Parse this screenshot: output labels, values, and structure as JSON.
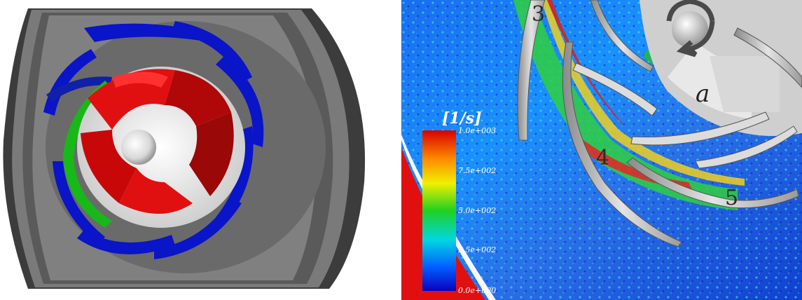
{
  "left_panel": {
    "colors": {
      "casing": "#6e6e6e",
      "casing_dark": "#3a3a3a",
      "diffuser_vanes": "#0a14c8",
      "impeller_blades": "#e01010",
      "highlight_vane": "#18b818",
      "hub": "#f2f2f2"
    }
  },
  "right_panel": {
    "blade_labels": [
      "3",
      "4",
      "5"
    ],
    "impeller_label": "a",
    "colorbar": {
      "unit": "[1/s]",
      "ticks": [
        "1.0e+003",
        "7.5e+002",
        "5.0e+002",
        "2.5e+002",
        "0.0e+000"
      ],
      "colors": [
        "#d80000",
        "#ff8c00",
        "#f0f000",
        "#20d020",
        "#00d8e0",
        "#0060ff",
        "#0a00c0"
      ]
    }
  }
}
